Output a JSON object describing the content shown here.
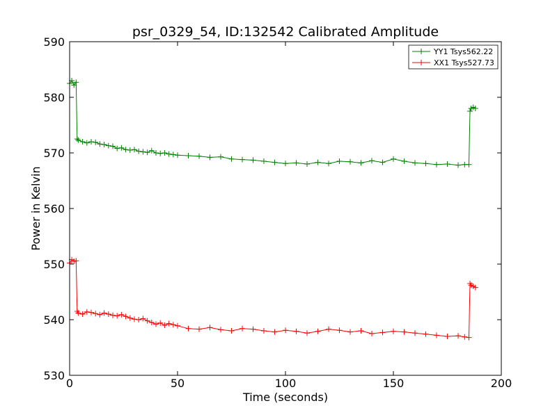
{
  "chart_data": {
    "type": "line",
    "title": "psr_0329_54, ID:132542 Calibrated Amplitude",
    "xlabel": "Time (seconds)",
    "ylabel": "Power in Kelvin",
    "xlim": [
      0,
      200
    ],
    "ylim": [
      530,
      590
    ],
    "xticks": [
      "0",
      "50",
      "100",
      "150",
      "200"
    ],
    "yticks": [
      "530",
      "540",
      "550",
      "560",
      "570",
      "580",
      "590"
    ],
    "grid": false,
    "legend_position": "top-right",
    "marker": "+",
    "series": [
      {
        "name": "YY1 Tsys562.22",
        "color": "#008000",
        "x": [
          0,
          1,
          2,
          3,
          3.5,
          4,
          6,
          8,
          10,
          12,
          14,
          16,
          18,
          20,
          22,
          24,
          26,
          28,
          30,
          32,
          34,
          36,
          38,
          40,
          42,
          44,
          46,
          48,
          50,
          55,
          60,
          65,
          70,
          75,
          80,
          85,
          90,
          95,
          100,
          105,
          110,
          115,
          120,
          125,
          130,
          135,
          140,
          145,
          150,
          155,
          160,
          165,
          170,
          175,
          180,
          183,
          185,
          185.5,
          186,
          187,
          188
        ],
        "values": [
          582.5,
          583,
          582.2,
          582.7,
          572.5,
          572.3,
          572.0,
          571.8,
          572.0,
          571.9,
          571.6,
          571.5,
          571.3,
          571.2,
          570.8,
          570.9,
          570.6,
          570.5,
          570.6,
          570.3,
          570.2,
          570.1,
          570.4,
          570.0,
          569.9,
          570.0,
          569.8,
          569.7,
          569.6,
          569.5,
          569.4,
          569.2,
          569.3,
          568.9,
          568.8,
          568.7,
          568.5,
          568.3,
          568.1,
          568.2,
          568.0,
          568.3,
          568.1,
          568.5,
          568.4,
          568.2,
          568.6,
          568.3,
          568.9,
          568.5,
          568.2,
          568.1,
          567.9,
          568.0,
          567.8,
          567.9,
          567.9,
          577.5,
          578.0,
          578.2,
          578.0
        ]
      },
      {
        "name": "XX1 Tsys527.73",
        "color": "#ff0000",
        "x": [
          0,
          1,
          2,
          3,
          3.5,
          4,
          6,
          8,
          10,
          12,
          14,
          16,
          18,
          20,
          22,
          24,
          26,
          28,
          30,
          32,
          34,
          36,
          38,
          40,
          42,
          44,
          46,
          48,
          50,
          55,
          60,
          65,
          70,
          75,
          80,
          85,
          90,
          95,
          100,
          105,
          110,
          115,
          120,
          125,
          130,
          135,
          140,
          145,
          150,
          155,
          160,
          165,
          170,
          175,
          180,
          183,
          185,
          185.5,
          186,
          187,
          188
        ],
        "values": [
          550.2,
          550.8,
          550.5,
          550.6,
          541.5,
          541.2,
          541.0,
          541.4,
          541.3,
          541.1,
          540.9,
          541.2,
          541.0,
          540.8,
          540.7,
          540.9,
          540.6,
          540.3,
          540.1,
          540.0,
          540.2,
          539.8,
          539.5,
          539.2,
          539.4,
          539.0,
          539.3,
          539.1,
          538.9,
          538.4,
          538.3,
          538.6,
          538.2,
          538.0,
          538.4,
          538.3,
          538.0,
          537.8,
          538.1,
          537.9,
          537.6,
          537.9,
          538.3,
          538.1,
          537.8,
          538.0,
          537.5,
          537.7,
          537.9,
          537.8,
          537.6,
          537.4,
          537.2,
          537.0,
          537.1,
          536.9,
          536.8,
          546.5,
          546.2,
          546.0,
          545.8
        ]
      }
    ]
  }
}
